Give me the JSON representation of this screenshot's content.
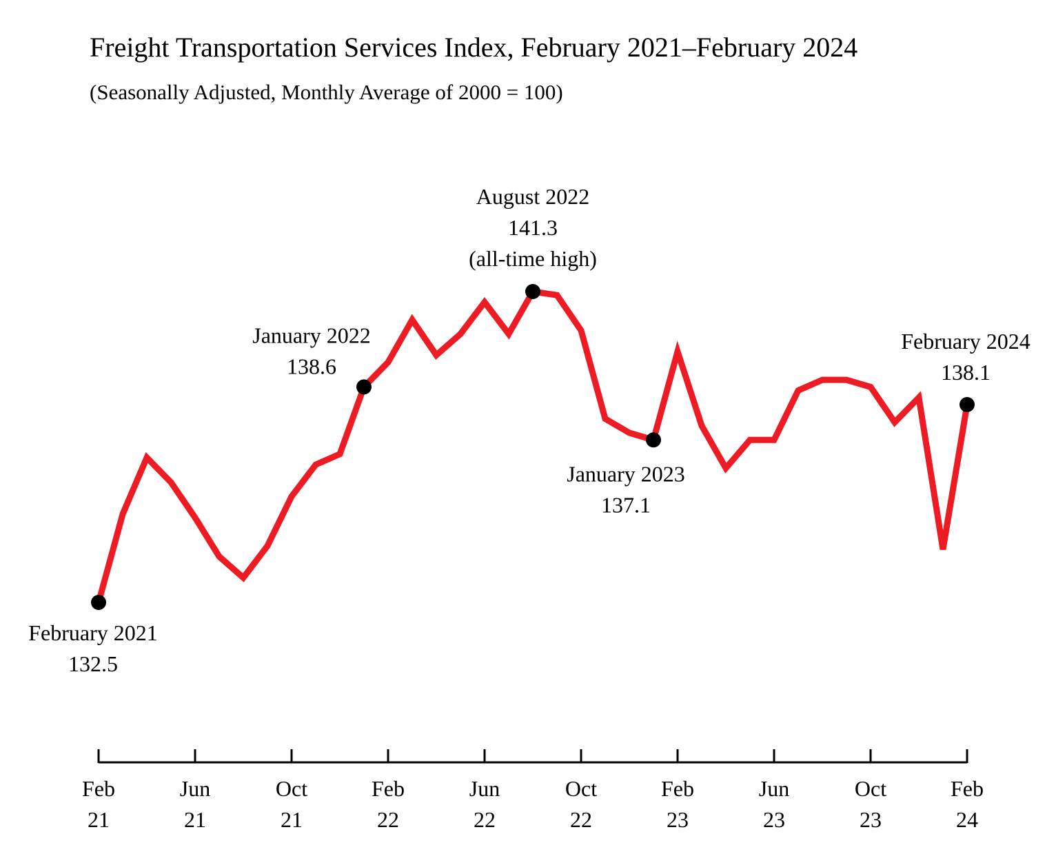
{
  "chart_data": {
    "type": "line",
    "title": "Freight Transportation Services Index, February 2021–February 2024",
    "subtitle": "(Seasonally Adjusted, Monthly Average of 2000 = 100)",
    "xlabel": "",
    "ylabel": "",
    "grid": false,
    "line_color": "#ed1c24",
    "marker_color": "#000000",
    "x": [
      "2021-02",
      "2021-03",
      "2021-04",
      "2021-05",
      "2021-06",
      "2021-07",
      "2021-08",
      "2021-09",
      "2021-10",
      "2021-11",
      "2021-12",
      "2022-01",
      "2022-02",
      "2022-03",
      "2022-04",
      "2022-05",
      "2022-06",
      "2022-07",
      "2022-08",
      "2022-09",
      "2022-10",
      "2022-11",
      "2022-12",
      "2023-01",
      "2023-02",
      "2023-03",
      "2023-04",
      "2023-05",
      "2023-06",
      "2023-07",
      "2023-08",
      "2023-09",
      "2023-10",
      "2023-11",
      "2023-12",
      "2024-01",
      "2024-02"
    ],
    "values": [
      132.5,
      135.0,
      136.6,
      135.9,
      134.9,
      133.8,
      133.2,
      134.1,
      135.5,
      136.4,
      136.7,
      138.6,
      139.3,
      140.5,
      139.5,
      140.1,
      141.0,
      140.1,
      141.3,
      141.2,
      140.2,
      137.7,
      137.3,
      137.1,
      139.6,
      137.5,
      136.3,
      137.1,
      137.1,
      138.5,
      138.8,
      138.8,
      138.6,
      137.6,
      138.3,
      134.0,
      138.1
    ],
    "x_ticks": [
      {
        "month": "Feb",
        "year": "21"
      },
      {
        "month": "Jun",
        "year": "21"
      },
      {
        "month": "Oct",
        "year": "21"
      },
      {
        "month": "Feb",
        "year": "22"
      },
      {
        "month": "Jun",
        "year": "22"
      },
      {
        "month": "Oct",
        "year": "22"
      },
      {
        "month": "Feb",
        "year": "23"
      },
      {
        "month": "Jun",
        "year": "23"
      },
      {
        "month": "Oct",
        "year": "23"
      },
      {
        "month": "Feb",
        "year": "24"
      }
    ],
    "annotations": [
      {
        "index": 0,
        "lines": [
          "February 2021",
          "132.5"
        ]
      },
      {
        "index": 11,
        "lines": [
          "January 2022",
          "138.6"
        ]
      },
      {
        "index": 18,
        "lines": [
          "August 2022",
          "141.3",
          "(all-time high)"
        ]
      },
      {
        "index": 23,
        "lines": [
          "January 2023",
          "137.1"
        ]
      },
      {
        "index": 36,
        "lines": [
          "February 2024",
          "138.1"
        ]
      }
    ]
  }
}
